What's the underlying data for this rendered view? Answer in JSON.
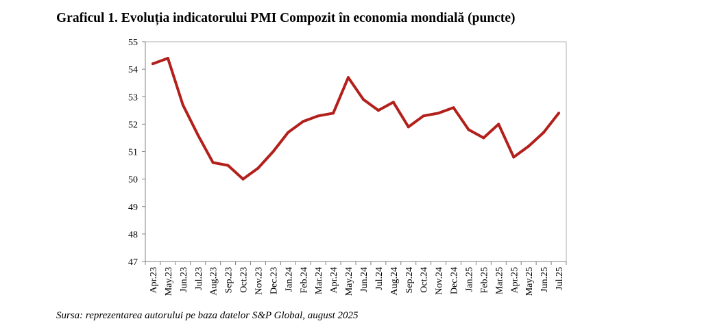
{
  "title": "Graficul 1. Evoluția indicatorului PMI Compozit în economia mondială (puncte)",
  "source": "Sursa: reprezentarea autorului pe baza datelor S&P Global, august 2025",
  "colors": {
    "line": "#b3201c",
    "plot_border": "#b0b0b0",
    "axis": "#808080"
  },
  "chart_data": {
    "type": "line",
    "title": "Graficul 1. Evoluția indicatorului PMI Compozit în economia mondială (puncte)",
    "xlabel": "",
    "ylabel": "",
    "ylim": [
      47,
      55
    ],
    "yticks": [
      47,
      48,
      49,
      50,
      51,
      52,
      53,
      54,
      55
    ],
    "grid": false,
    "legend": "none",
    "categories": [
      "Apr.23",
      "May.23",
      "Jun.23",
      "Jul.23",
      "Aug.23",
      "Sep.23",
      "Oct.23",
      "Nov.23",
      "Dec.23",
      "Jan.24",
      "Feb.24",
      "Mar.24",
      "Apr.24",
      "May.24",
      "Jun.24",
      "Jul.24",
      "Aug.24",
      "Sep.24",
      "Oct.24",
      "Nov.24",
      "Dec.24",
      "Jan.25",
      "Feb.25",
      "Mar.25",
      "Apr.25",
      "May.25",
      "Jun.25",
      "Jul.25"
    ],
    "series": [
      {
        "values": [
          54.2,
          54.4,
          52.7,
          51.6,
          50.6,
          50.5,
          50.0,
          50.4,
          51.0,
          51.7,
          52.1,
          52.3,
          52.4,
          53.7,
          52.9,
          52.5,
          52.8,
          51.9,
          52.3,
          52.4,
          52.6,
          51.8,
          51.5,
          52.0,
          50.8,
          51.2,
          51.7,
          52.4
        ]
      }
    ]
  }
}
